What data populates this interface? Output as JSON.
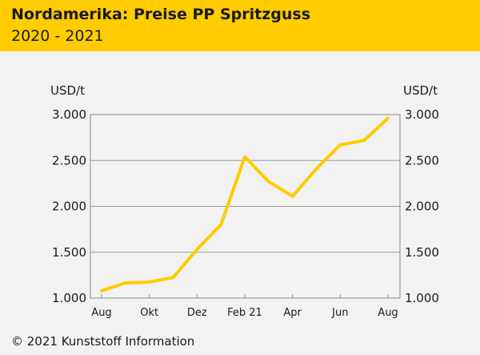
{
  "header": {
    "title": "Nordamerika: Preise PP Spritzguss",
    "subtitle": "2020 - 2021"
  },
  "footer": {
    "copyright": "© 2021 Kunststoff Information"
  },
  "colors": {
    "header_bg": "#ffcc00",
    "line": "#ffcc00",
    "background": "#f2f2f2",
    "grid": "#9a9a9a"
  },
  "chart_data": {
    "type": "line",
    "title": "Nordamerika: Preise PP Spritzguss",
    "subtitle": "2020 - 2021",
    "ylabel_left": "USD/t",
    "ylabel_right": "USD/t",
    "ylim": [
      1000,
      3000
    ],
    "yticks": [
      1000,
      1500,
      2000,
      2500,
      3000
    ],
    "ytick_labels": [
      "1.000",
      "1.500",
      "2.000",
      "2.500",
      "3.000"
    ],
    "xtick_labels": [
      "Aug",
      "Okt",
      "Dez",
      "Feb 21",
      "Apr",
      "Jun",
      "Aug"
    ],
    "grid": true,
    "x": [
      "2020-08",
      "2020-09",
      "2020-10",
      "2020-11",
      "2020-12",
      "2021-01",
      "2021-02",
      "2021-03",
      "2021-04",
      "2021-05",
      "2021-06",
      "2021-07",
      "2021-08"
    ],
    "series": [
      {
        "values": [
          1080,
          1165,
          1175,
          1225,
          1530,
          1800,
          2540,
          2270,
          2110,
          2410,
          2670,
          2720,
          2960
        ]
      }
    ]
  }
}
